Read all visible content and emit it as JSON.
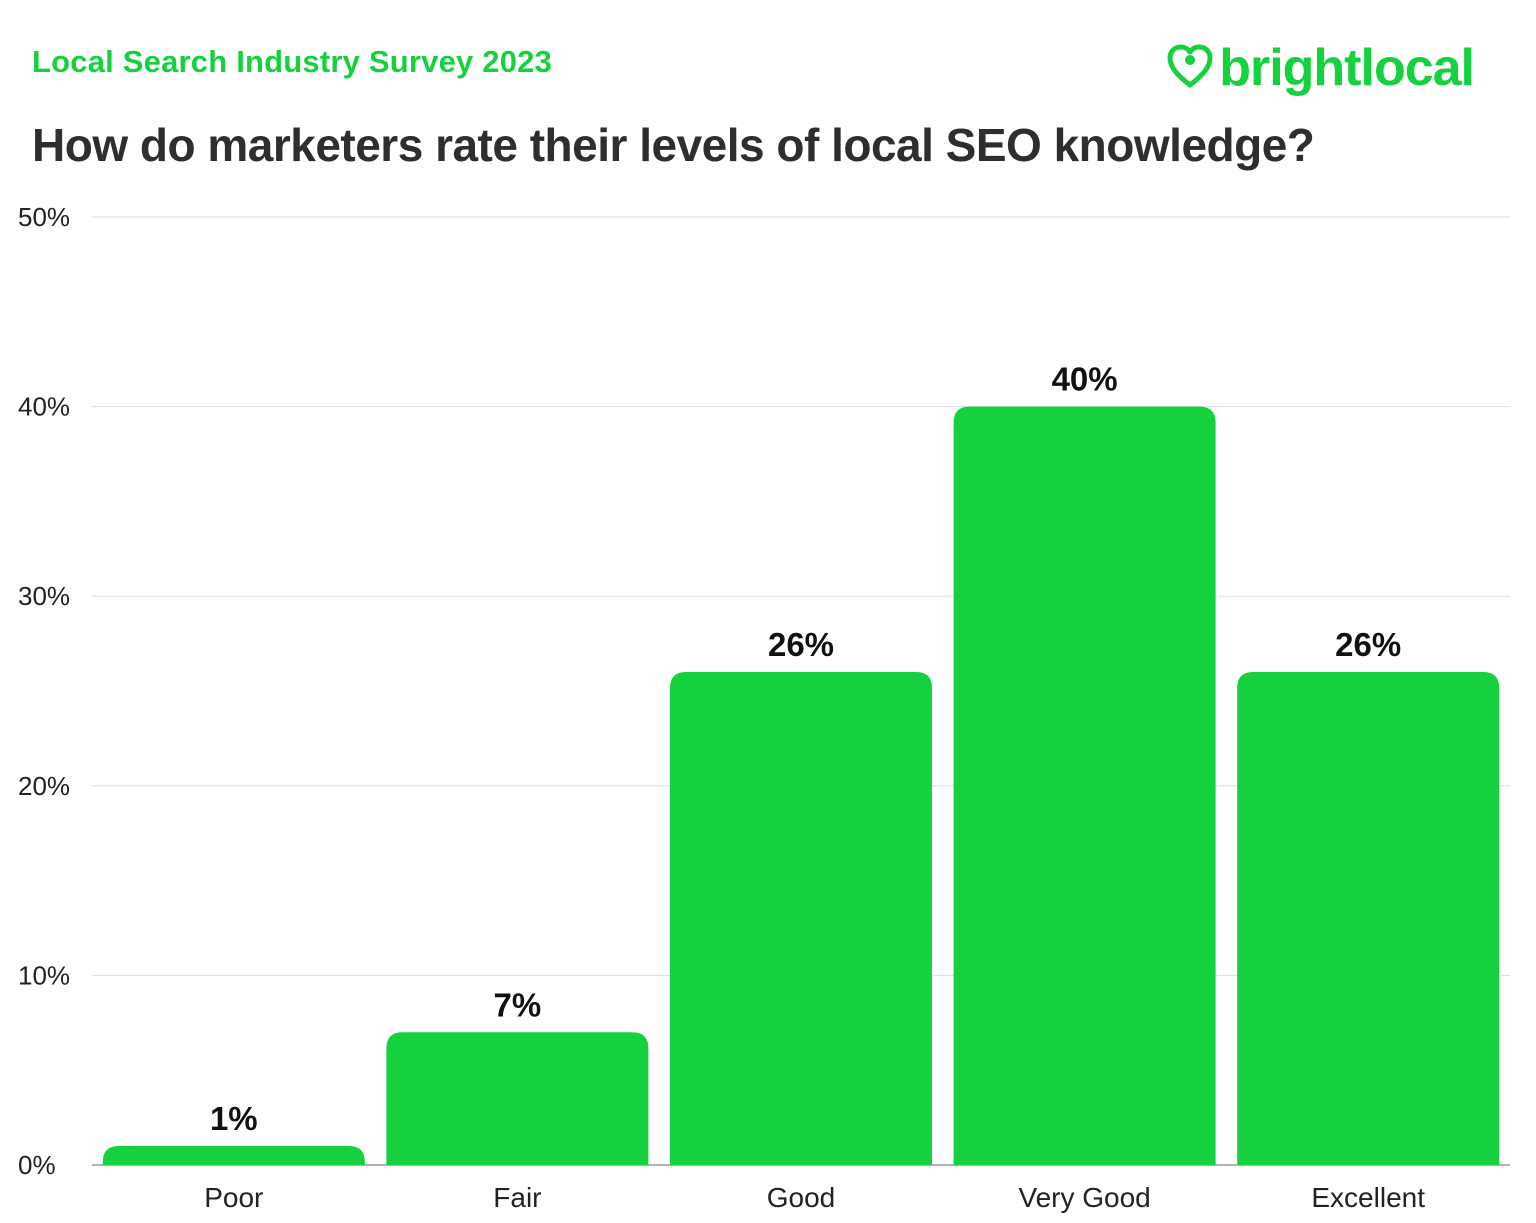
{
  "header": {
    "survey_label": "Local Search Industry Survey 2023",
    "brand": "brightlocal",
    "brand_color": "#15d13e",
    "brand_icon": "heart-pin-icon"
  },
  "chart_data": {
    "type": "bar",
    "title": "How do marketers rate their levels of local SEO knowledge?",
    "categories": [
      "Poor",
      "Fair",
      "Good",
      "Very Good",
      "Excellent"
    ],
    "values": [
      1,
      7,
      26,
      40,
      26
    ],
    "value_labels": [
      "1%",
      "7%",
      "26%",
      "40%",
      "26%"
    ],
    "xlabel": "",
    "ylabel": "",
    "ylim": [
      0,
      50
    ],
    "yticks": [
      0,
      10,
      20,
      30,
      40,
      50
    ],
    "ytick_labels": [
      "0%",
      "10%",
      "20%",
      "30%",
      "40%",
      "50%"
    ],
    "grid": true,
    "bar_color": "#15d13e"
  }
}
